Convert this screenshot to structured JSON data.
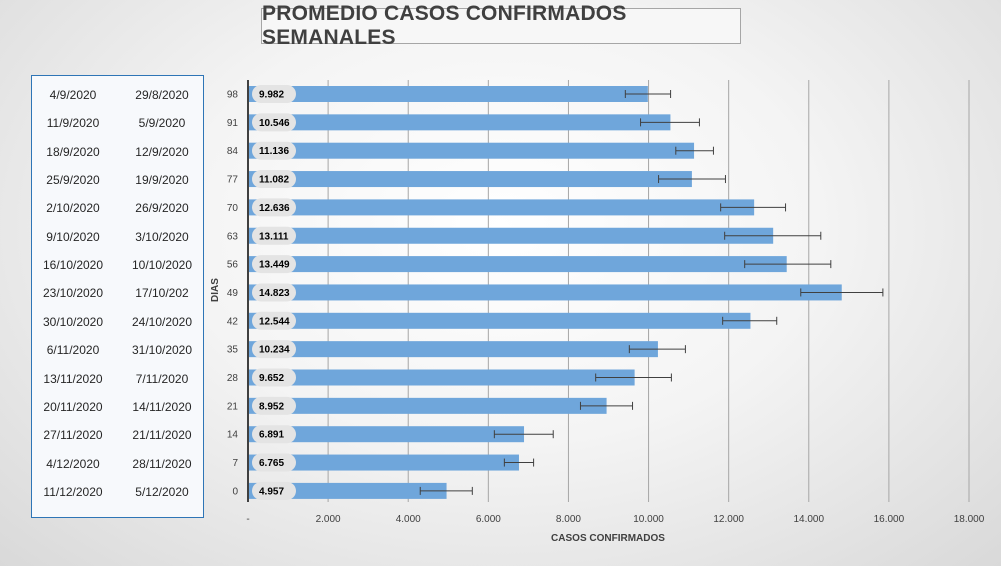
{
  "title": "PROMEDIO CASOS CONFIRMADOS SEMANALES",
  "date_ranges": [
    {
      "end": "4/9/2020",
      "start": "29/8/2020"
    },
    {
      "end": "11/9/2020",
      "start": "5/9/2020"
    },
    {
      "end": "18/9/2020",
      "start": "12/9/2020"
    },
    {
      "end": "25/9/2020",
      "start": "19/9/2020"
    },
    {
      "end": "2/10/2020",
      "start": "26/9/2020"
    },
    {
      "end": "9/10/2020",
      "start": "3/10/2020"
    },
    {
      "end": "16/10/2020",
      "start": "10/10/2020"
    },
    {
      "end": "23/10/2020",
      "start": "17/10/202"
    },
    {
      "end": "30/10/2020",
      "start": "24/10/2020"
    },
    {
      "end": "6/11/2020",
      "start": "31/10/2020"
    },
    {
      "end": "13/11/2020",
      "start": "7/11/2020"
    },
    {
      "end": "20/11/2020",
      "start": "14/11/2020"
    },
    {
      "end": "27/11/2020",
      "start": "21/11/2020"
    },
    {
      "end": "4/12/2020",
      "start": "28/11/2020"
    },
    {
      "end": "11/12/2020",
      "start": "5/12/2020"
    }
  ],
  "chart_data": {
    "type": "bar",
    "orientation": "horizontal",
    "title": "PROMEDIO CASOS CONFIRMADOS SEMANALES",
    "xlabel": "CASOS CONFIRMADOS",
    "ylabel": "DIAS",
    "xlim": [
      0,
      18000
    ],
    "x_ticks": [
      "-",
      "2.000",
      "4.000",
      "6.000",
      "8.000",
      "10.000",
      "12.000",
      "14.000",
      "16.000",
      "18.000"
    ],
    "grid": "vertical",
    "bar_color": "#6fa6db",
    "categories": [
      "98",
      "91",
      "84",
      "77",
      "70",
      "63",
      "56",
      "49",
      "42",
      "35",
      "28",
      "21",
      "14",
      "7",
      "0"
    ],
    "values": [
      9982,
      10546,
      11136,
      11082,
      12636,
      13111,
      13449,
      14823,
      12544,
      10234,
      9652,
      8952,
      6891,
      6765,
      4957
    ],
    "value_labels": [
      "9.982",
      "10.546",
      "11.136",
      "11.082",
      "12.636",
      "13.111",
      "13.449",
      "14.823",
      "12.544",
      "10.234",
      "9.652",
      "8.952",
      "6.891",
      "6.765",
      "4.957"
    ],
    "error_low": [
      9420,
      9800,
      10680,
      10250,
      11800,
      11900,
      12400,
      13800,
      11850,
      9520,
      8680,
      8300,
      6150,
      6400,
      4300
    ],
    "error_high": [
      10550,
      11270,
      11620,
      11920,
      13420,
      14300,
      14550,
      15850,
      13200,
      10920,
      10570,
      9600,
      7620,
      7130,
      5600
    ]
  }
}
